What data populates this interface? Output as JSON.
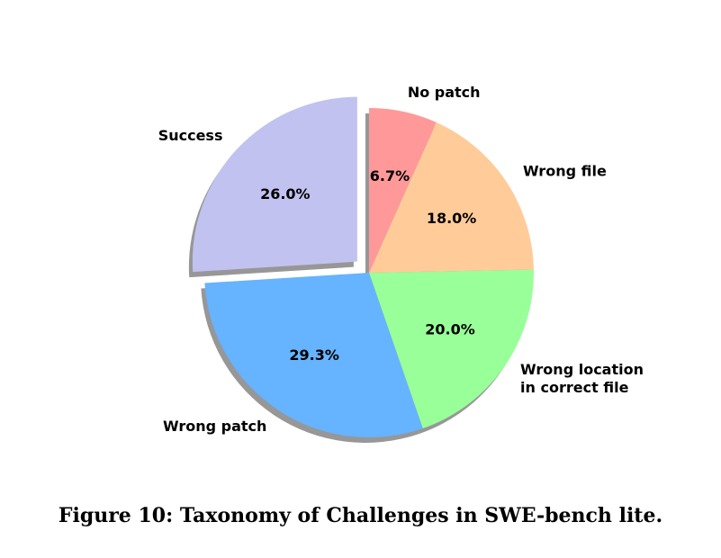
{
  "caption": "Figure 10: Taxonomy of Challenges in SWE-bench lite.",
  "chart_data": {
    "type": "pie",
    "title": "",
    "start_angle_deg": 90,
    "direction": "counterclockwise",
    "shadow": true,
    "slices": [
      {
        "label": "Success",
        "value": 26.0,
        "pct_label": "26.0%",
        "color": "#c2c2f0",
        "exploded": true
      },
      {
        "label": "Wrong patch",
        "value": 29.3,
        "pct_label": "29.3%",
        "color": "#66b3ff",
        "exploded": false
      },
      {
        "label": "Wrong location\nin correct file",
        "value": 20.0,
        "pct_label": "20.0%",
        "color": "#99ff99",
        "exploded": false
      },
      {
        "label": "Wrong file",
        "value": 18.0,
        "pct_label": "18.0%",
        "color": "#ffcc99",
        "exploded": false
      },
      {
        "label": "No patch",
        "value": 6.7,
        "pct_label": "6.7%",
        "color": "#ff9999",
        "exploded": false
      }
    ]
  }
}
